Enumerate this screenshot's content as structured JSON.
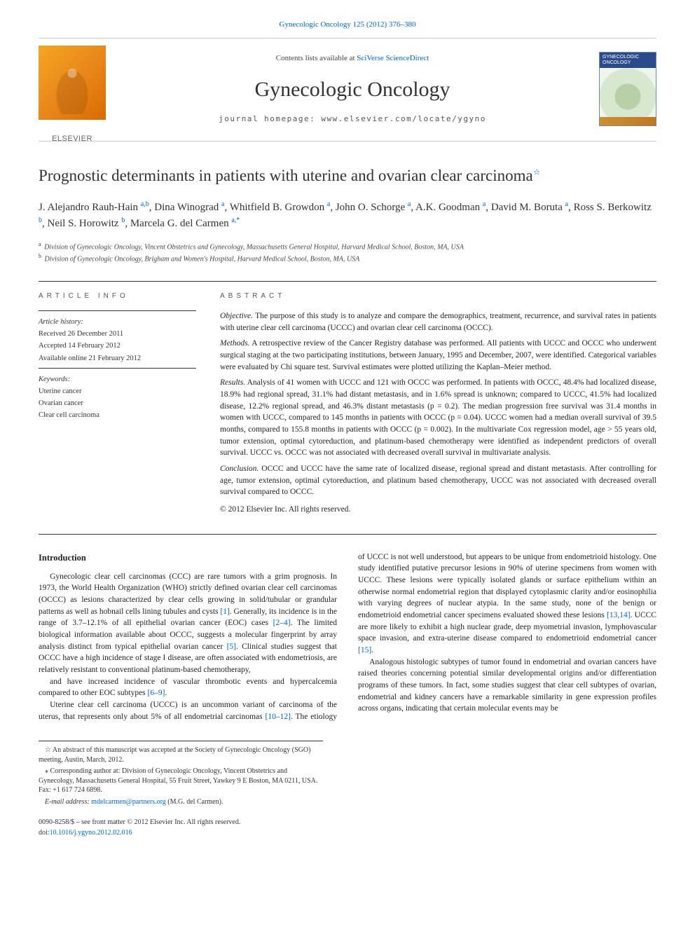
{
  "journal_link": "Gynecologic Oncology 125 (2012) 376–380",
  "header": {
    "publisher_name": "ELSEVIER",
    "contents_prefix": "Contents lists available at ",
    "contents_link": "SciVerse ScienceDirect",
    "journal_title": "Gynecologic Oncology",
    "homepage_label": "journal homepage: www.elsevier.com/locate/ygyno",
    "cover_strip": "GYNECOLOGIC ONCOLOGY"
  },
  "article": {
    "title": "Prognostic determinants in patients with uterine and ovarian clear carcinoma",
    "title_note_symbol": "☆",
    "authors_html": [
      {
        "n": "J. Alejandro Rauh-Hain",
        "a": "a,b"
      },
      {
        "n": "Dina Winograd",
        "a": "a"
      },
      {
        "n": "Whitfield B. Growdon",
        "a": "a"
      },
      {
        "n": "John O. Schorge",
        "a": "a"
      },
      {
        "n": "A.K. Goodman",
        "a": "a"
      },
      {
        "n": "David M. Boruta",
        "a": "a"
      },
      {
        "n": "Ross S. Berkowitz",
        "a": "b"
      },
      {
        "n": "Neil S. Horowitz",
        "a": "b"
      },
      {
        "n": "Marcela G. del Carmen",
        "a": "a,*"
      }
    ],
    "affiliations": [
      {
        "k": "a",
        "t": "Division of Gynecologic Oncology, Vincent Obstetrics and Gynecology, Massachusetts General Hospital, Harvard Medical School, Boston, MA, USA"
      },
      {
        "k": "b",
        "t": "Division of Gynecologic Oncology, Brigham and Women's Hospital, Harvard Medical School, Boston, MA, USA"
      }
    ]
  },
  "info": {
    "heading": "ARTICLE INFO",
    "history_label": "Article history:",
    "received": "Received 26 December 2011",
    "accepted": "Accepted 14 February 2012",
    "online": "Available online 21 February 2012",
    "keywords_label": "Keywords:",
    "keywords": [
      "Uterine cancer",
      "Ovarian cancer",
      "Clear cell carcinoma"
    ]
  },
  "abstract": {
    "heading": "ABSTRACT",
    "paras": [
      {
        "run": "Objective.",
        "t": " The purpose of this study is to analyze and compare the demographics, treatment, recurrence, and survival rates in patients with uterine clear cell carcinoma (UCCC) and ovarian clear cell carcinoma (OCCC)."
      },
      {
        "run": "Methods.",
        "t": " A retrospective review of the Cancer Registry database was performed. All patients with UCCC and OCCC who underwent surgical staging at the two participating institutions, between January, 1995 and December, 2007, were identified. Categorical variables were evaluated by Chi square test. Survival estimates were plotted utilizing the Kaplan–Meier method."
      },
      {
        "run": "Results.",
        "t": " Analysis of 41 women with UCCC and 121 with OCCC was performed. In patients with OCCC, 48.4% had localized disease, 18.9% had regional spread, 31.1% had distant metastasis, and in 1.6% spread is unknown; compared to UCCC, 41.5% had localized disease, 12.2% regional spread, and 46.3% distant metastasis (p = 0.2). The median progression free survival was 31.4 months in women with UCCC, compared to 145 months in patients with OCCC (p = 0.04). UCCC women had a median overall survival of 39.5 months, compared to 155.8 months in patients with OCCC (p = 0.002). In the multivariate Cox regression model, age > 55 years old, tumor extension, optimal cytoreduction, and platinum-based chemotherapy were identified as independent predictors of overall survival. UCCC vs. OCCC was not associated with decreased overall survival in multivariate analysis."
      },
      {
        "run": "Conclusion.",
        "t": " OCCC and UCCC have the same rate of localized disease, regional spread and distant metastasis. After controlling for age, tumor extension, optimal cytoreduction, and platinum based chemotherapy, UCCC was not associated with decreased overall survival compared to OCCC."
      }
    ],
    "copyright": "© 2012 Elsevier Inc. All rights reserved."
  },
  "body": {
    "intro_heading": "Introduction",
    "paragraphs": [
      "Gynecologic clear cell carcinomas (CCC) are rare tumors with a grim prognosis. In 1973, the World Health Organization (WHO) strictly defined ovarian clear cell carcinomas (OCCC) as lesions characterized by clear cells growing in solid/tubular or grandular patterns as well as hobnail cells lining tubules and cysts <span class=\"cite\">[1]</span>. Generally, its incidence is in the range of 3.7–12.1% of all epithelial ovarian cancer (EOC) cases <span class=\"cite\">[2–4]</span>. The limited biological information available about OCCC, suggests a molecular fingerprint by array analysis distinct from typical epithelial ovarian cancer <span class=\"cite\">[5]</span>. Clinical studies suggest that OCCC have a high incidence of stage I disease, are often associated with endometriosis, are relatively resistant to conventional platinum-based chemotherapy,",
      "and have increased incidence of vascular thrombotic events and hypercalcemia compared to other EOC subtypes <span class=\"cite\">[6–9]</span>.",
      "Uterine clear cell carcinoma (UCCC) is an uncommon variant of carcinoma of the uterus, that represents only about 5% of all endometrial carcinomas <span class=\"cite\">[10–12]</span>. The etiology of UCCC is not well understood, but appears to be unique from endometrioid histology. One study identified putative precursor lesions in 90% of uterine specimens from women with UCCC. These lesions were typically isolated glands or surface epithelium within an otherwise normal endometrial region that displayed cytoplasmic clarity and/or eosinophilia with varying degrees of nuclear atypia. In the same study, none of the benign or endometrioid endometrial cancer specimens evaluated showed these lesions <span class=\"cite\">[13,14]</span>. UCCC are more likely to exhibit a high nuclear grade, deep myometrial invasion, lymphovascular space invasion, and extra-uterine disease compared to endometrioid endometrial cancer <span class=\"cite\">[15]</span>.",
      "Analogous histologic subtypes of tumor found in endometrial and ovarian cancers have raised theories concerning potential similar developmental origins and/or differentiation programs of these tumors. In fact, some studies suggest that clear cell subtypes of ovarian, endometrial and kidney cancers have a remarkable similarity in gene expression profiles across organs, indicating that certain molecular events may be"
    ]
  },
  "footnotes": {
    "note_star": "An abstract of this manuscript was accepted at the Society of Gynecologic Oncology (SGO) meeting, Austin, March, 2012.",
    "corresponding": "Corresponding author at: Division of Gynecologic Oncology, Vincent Obstetrics and Gynecology, Massachusetts General Hospital, 55 Fruit Street, Yawkey 9 E Boston, MA 0211, USA. Fax: +1 617 724 6898.",
    "email_label": "E-mail address:",
    "email": "mdelcarmen@partners.org",
    "email_who": "(M.G. del Carmen)."
  },
  "colophon": {
    "line1": "0090-8258/$ – see front matter © 2012 Elsevier Inc. All rights reserved.",
    "doi": "doi:10.1016/j.ygyno.2012.02.016"
  },
  "colors": {
    "link": "#0066cc",
    "text": "#222222",
    "rule": "#333333",
    "pub_gradient_a": "#f5a623",
    "pub_gradient_b": "#d96b00",
    "cover_band": "#2b4a8b"
  },
  "typography": {
    "body_pt": 11.5,
    "title_pt": 23,
    "journal_title_pt": 30,
    "authors_pt": 15,
    "meta_pt": 10.5,
    "footnote_pt": 10
  }
}
